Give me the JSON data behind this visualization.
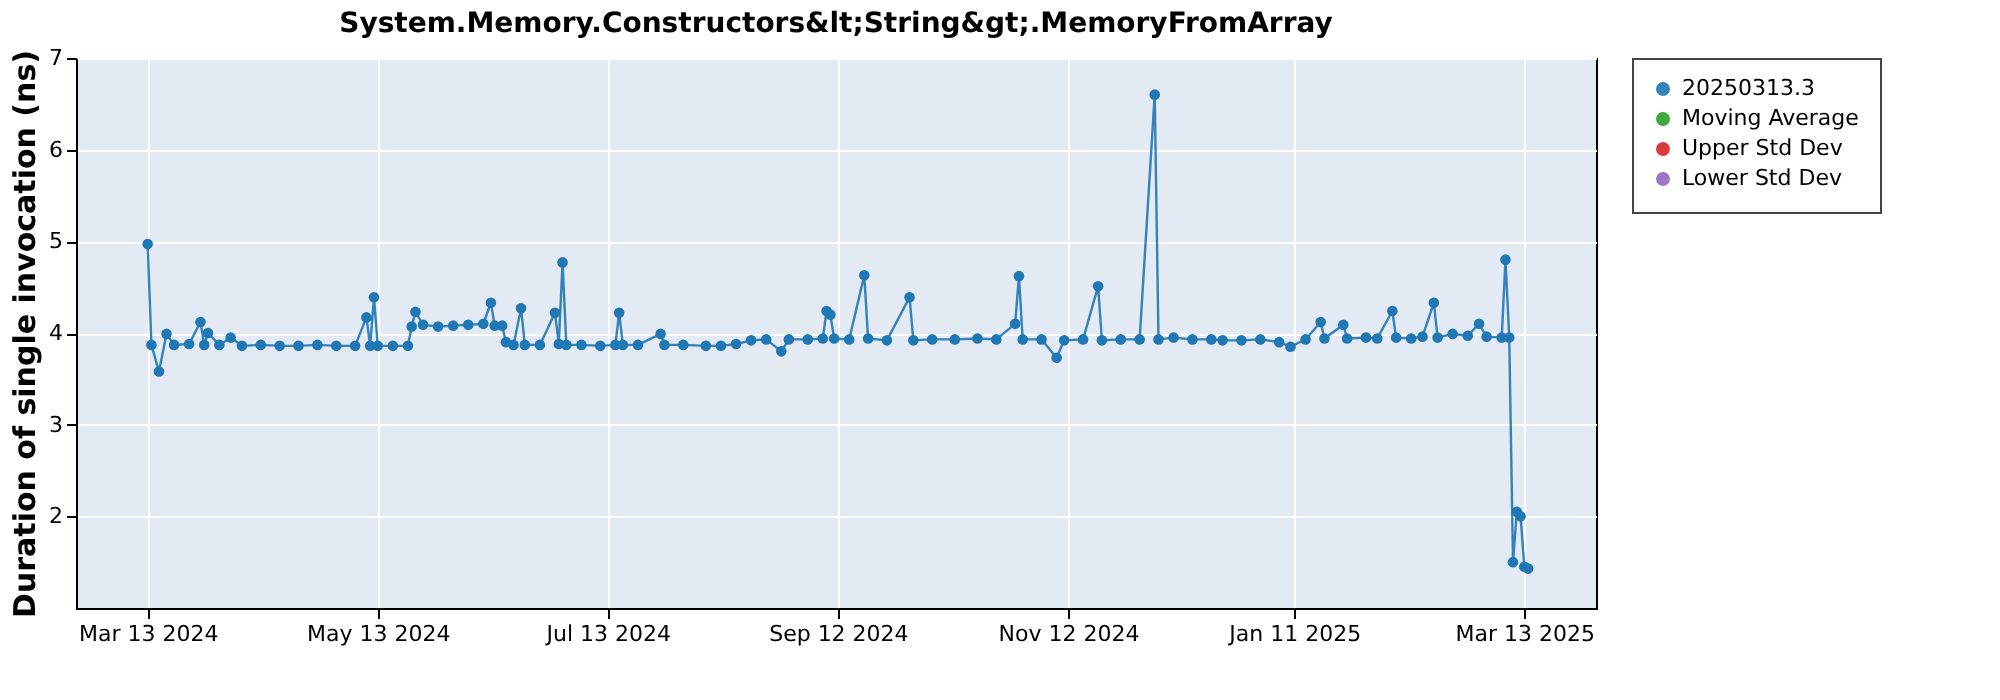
{
  "chart_data": {
    "type": "line",
    "title": "System.Memory.Constructors&lt;String&gt;.MemoryFromArray",
    "ylabel": "Duration of single invocation (ns)",
    "xlim": [
      "2024-02-23",
      "2025-04-01"
    ],
    "xticks": [
      {
        "value": "2024-03-13",
        "label": "Mar 13 2024"
      },
      {
        "value": "2024-05-13",
        "label": "May 13 2024"
      },
      {
        "value": "2024-07-13",
        "label": "Jul 13 2024"
      },
      {
        "value": "2024-09-12",
        "label": "Sep 12 2024"
      },
      {
        "value": "2024-11-12",
        "label": "Nov 12 2024"
      },
      {
        "value": "2025-01-11",
        "label": "Jan 11 2025"
      },
      {
        "value": "2025-03-13",
        "label": "Mar 13 2025"
      }
    ],
    "ylim": [
      1,
      7
    ],
    "yticks": [
      2,
      3,
      4,
      5,
      6,
      7
    ],
    "grid": true,
    "legend": "right",
    "marker": "circle",
    "line_style": "solid",
    "x": [
      "2024-03-13",
      "2024-03-14",
      "2024-03-16",
      "2024-03-18",
      "2024-03-20",
      "2024-03-24",
      "2024-03-27",
      "2024-03-28",
      "2024-03-29",
      "2024-04-01",
      "2024-04-04",
      "2024-04-07",
      "2024-04-12",
      "2024-04-17",
      "2024-04-22",
      "2024-04-27",
      "2024-05-02",
      "2024-05-07",
      "2024-05-10",
      "2024-05-11",
      "2024-05-12",
      "2024-05-13",
      "2024-05-17",
      "2024-05-21",
      "2024-05-22",
      "2024-05-23",
      "2024-05-25",
      "2024-05-29",
      "2024-06-02",
      "2024-06-06",
      "2024-06-10",
      "2024-06-12",
      "2024-06-13",
      "2024-06-15",
      "2024-06-16",
      "2024-06-18",
      "2024-06-20",
      "2024-06-21",
      "2024-06-25",
      "2024-06-29",
      "2024-06-30",
      "2024-07-01",
      "2024-07-02",
      "2024-07-06",
      "2024-07-11",
      "2024-07-15",
      "2024-07-16",
      "2024-07-17",
      "2024-07-21",
      "2024-07-27",
      "2024-07-28",
      "2024-08-02",
      "2024-08-08",
      "2024-08-12",
      "2024-08-16",
      "2024-08-20",
      "2024-08-24",
      "2024-08-28",
      "2024-08-30",
      "2024-09-04",
      "2024-09-08",
      "2024-09-09",
      "2024-09-10",
      "2024-09-11",
      "2024-09-15",
      "2024-09-19",
      "2024-09-20",
      "2024-09-25",
      "2024-10-01",
      "2024-10-02",
      "2024-10-07",
      "2024-10-13",
      "2024-10-19",
      "2024-10-24",
      "2024-10-29",
      "2024-10-30",
      "2024-10-31",
      "2024-11-05",
      "2024-11-09",
      "2024-11-11",
      "2024-11-16",
      "2024-11-20",
      "2024-11-21",
      "2024-11-26",
      "2024-12-01",
      "2024-12-05",
      "2024-12-06",
      "2024-12-10",
      "2024-12-15",
      "2024-12-20",
      "2024-12-23",
      "2024-12-28",
      "2025-01-02",
      "2025-01-07",
      "2025-01-10",
      "2025-01-14",
      "2025-01-18",
      "2025-01-19",
      "2025-01-24",
      "2025-01-25",
      "2025-01-30",
      "2025-02-02",
      "2025-02-06",
      "2025-02-07",
      "2025-02-11",
      "2025-02-14",
      "2025-02-17",
      "2025-02-18",
      "2025-02-22",
      "2025-02-26",
      "2025-03-01",
      "2025-03-03",
      "2025-03-07",
      "2025-03-08",
      "2025-03-09",
      "2025-03-10",
      "2025-03-11",
      "2025-03-12",
      "2025-03-13",
      "2025-03-14"
    ],
    "series": [
      {
        "name": "20250313.3",
        "color": "#1f77b4",
        "values": [
          4.97,
          3.87,
          3.58,
          3.99,
          3.87,
          3.88,
          4.12,
          3.87,
          4.0,
          3.87,
          3.95,
          3.86,
          3.87,
          3.86,
          3.86,
          3.87,
          3.86,
          3.86,
          4.17,
          3.86,
          4.39,
          3.86,
          3.86,
          3.86,
          4.07,
          4.23,
          4.09,
          4.07,
          4.08,
          4.09,
          4.1,
          4.33,
          4.08,
          4.08,
          3.9,
          3.87,
          4.27,
          3.87,
          3.87,
          4.22,
          3.88,
          4.77,
          3.87,
          3.87,
          3.86,
          3.87,
          4.22,
          3.87,
          3.87,
          3.99,
          3.87,
          3.87,
          3.86,
          3.86,
          3.88,
          3.92,
          3.93,
          3.8,
          3.93,
          3.93,
          3.94,
          4.24,
          4.2,
          3.94,
          3.93,
          4.63,
          3.94,
          3.92,
          4.39,
          3.92,
          3.93,
          3.93,
          3.94,
          3.93,
          4.1,
          4.62,
          3.93,
          3.93,
          3.73,
          3.92,
          3.93,
          4.51,
          3.92,
          3.93,
          3.93,
          6.6,
          3.93,
          3.95,
          3.93,
          3.93,
          3.92,
          3.92,
          3.93,
          3.9,
          3.85,
          3.93,
          4.12,
          3.94,
          4.09,
          3.94,
          3.95,
          3.94,
          4.24,
          3.95,
          3.94,
          3.96,
          4.33,
          3.95,
          3.99,
          3.97,
          4.1,
          3.96,
          3.95,
          4.8,
          3.95,
          1.5,
          2.05,
          2.0,
          1.45,
          1.43
        ]
      },
      {
        "name": "Moving Average",
        "color": "#2ca02c",
        "values": [
          null,
          null,
          null,
          null,
          null,
          null,
          null,
          null,
          null,
          null,
          null,
          null,
          null,
          null,
          null,
          null,
          null,
          null,
          null,
          null,
          null,
          null,
          null,
          null,
          null,
          null,
          null,
          null,
          null,
          null,
          null,
          null,
          null,
          null,
          null,
          null,
          null,
          null,
          null,
          null,
          null,
          null,
          null,
          null,
          null,
          null,
          null,
          null,
          null,
          null,
          null,
          null,
          null,
          null,
          null,
          null,
          null,
          null,
          null,
          null,
          null,
          null,
          null,
          null,
          null,
          null,
          null,
          null,
          null,
          null,
          null,
          null,
          null,
          null,
          null,
          null,
          null,
          null,
          null,
          null,
          null,
          null,
          null,
          null,
          null,
          null,
          null,
          null,
          null,
          null,
          null,
          null,
          null,
          null,
          null,
          null,
          null,
          null,
          null,
          null,
          null,
          null,
          null,
          null,
          null,
          null,
          null,
          null,
          null,
          null,
          null,
          null,
          null,
          null,
          null,
          null,
          null,
          null,
          null,
          null
        ]
      },
      {
        "name": "Upper Std Dev",
        "color": "#d62728",
        "values": [
          null,
          null,
          null,
          null,
          null,
          null,
          null,
          null,
          null,
          null,
          null,
          null,
          null,
          null,
          null,
          null,
          null,
          null,
          null,
          null,
          null,
          null,
          null,
          null,
          null,
          null,
          null,
          null,
          null,
          null,
          null,
          null,
          null,
          null,
          null,
          null,
          null,
          null,
          null,
          null,
          null,
          null,
          null,
          null,
          null,
          null,
          null,
          null,
          null,
          null,
          null,
          null,
          null,
          null,
          null,
          null,
          null,
          null,
          null,
          null,
          null,
          null,
          null,
          null,
          null,
          null,
          null,
          null,
          null,
          null,
          null,
          null,
          null,
          null,
          null,
          null,
          null,
          null,
          null,
          null,
          null,
          null,
          null,
          null,
          null,
          null,
          null,
          null,
          null,
          null,
          null,
          null,
          null,
          null,
          null,
          null,
          null,
          null,
          null,
          null,
          null,
          null,
          null,
          null,
          null,
          null,
          null,
          null,
          null,
          null,
          null,
          null,
          null,
          null,
          null,
          null,
          null,
          null,
          null,
          null
        ]
      },
      {
        "name": "Lower Std Dev",
        "color": "#9467bd",
        "values": [
          null,
          null,
          null,
          null,
          null,
          null,
          null,
          null,
          null,
          null,
          null,
          null,
          null,
          null,
          null,
          null,
          null,
          null,
          null,
          null,
          null,
          null,
          null,
          null,
          null,
          null,
          null,
          null,
          null,
          null,
          null,
          null,
          null,
          null,
          null,
          null,
          null,
          null,
          null,
          null,
          null,
          null,
          null,
          null,
          null,
          null,
          null,
          null,
          null,
          null,
          null,
          null,
          null,
          null,
          null,
          null,
          null,
          null,
          null,
          null,
          null,
          null,
          null,
          null,
          null,
          null,
          null,
          null,
          null,
          null,
          null,
          null,
          null,
          null,
          null,
          null,
          null,
          null,
          null,
          null,
          null,
          null,
          null,
          null,
          null,
          null,
          null,
          null,
          null,
          null,
          null,
          null,
          null,
          null,
          null,
          null,
          null,
          null,
          null,
          null,
          null,
          null,
          null,
          null,
          null,
          null,
          null,
          null,
          null,
          null,
          null,
          null,
          null,
          null,
          null,
          null,
          null,
          null,
          null,
          null
        ]
      }
    ]
  }
}
